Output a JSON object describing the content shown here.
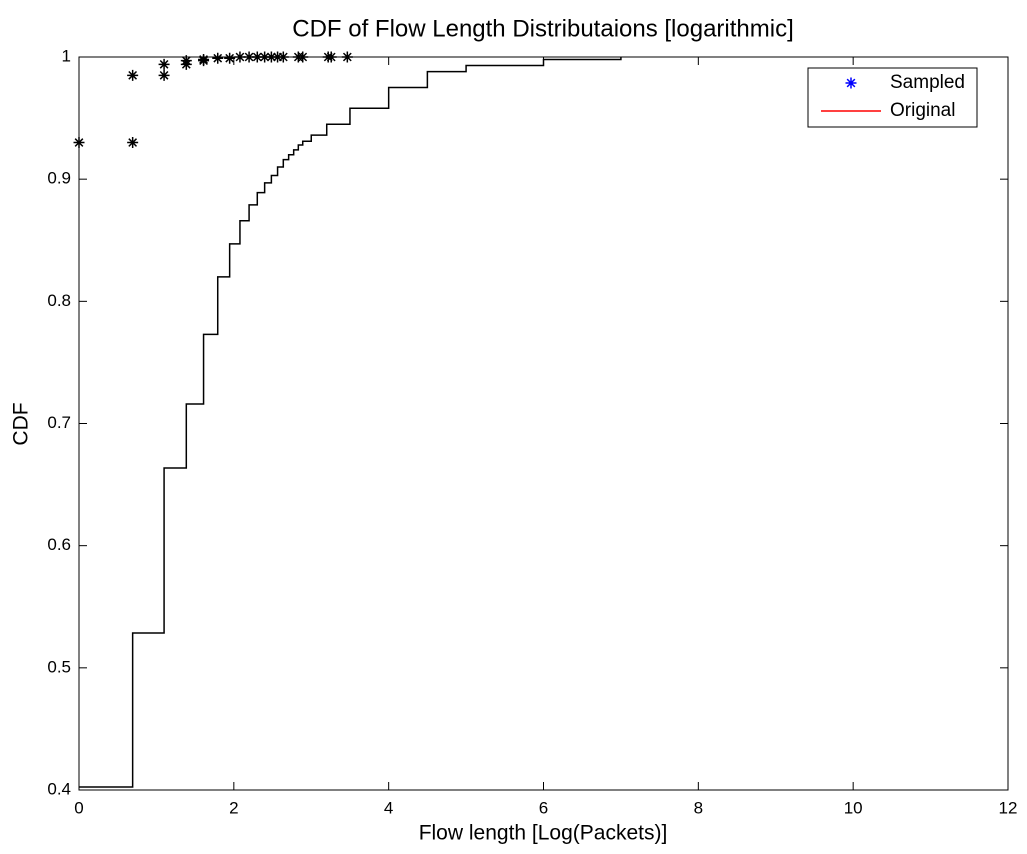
{
  "chart_data": {
    "type": "line",
    "title": "CDF of Flow Length Distributaions [logarithmic]",
    "x_label": "Flow length [Log(Packets)]",
    "y_label": "CDF",
    "xlim": [
      0,
      12
    ],
    "xticks": [
      0,
      2,
      4,
      6,
      8,
      10,
      12
    ],
    "ylim": [
      0.4,
      1
    ],
    "yticks": [
      0.4,
      0.5,
      0.6,
      0.7,
      0.8,
      0.9,
      1
    ],
    "grid": false,
    "legend": "northeast",
    "series": [
      {
        "name": "Sampled",
        "type": "scatter",
        "marker": "*",
        "color": "#000000",
        "legend_color": "#0000ff",
        "x": [
          0,
          0.693,
          0.693,
          1.099,
          1.099,
          1.386,
          1.386,
          1.609,
          1.609,
          1.792,
          1.946,
          2.079,
          2.197,
          2.303,
          2.398,
          2.485,
          2.565,
          2.639,
          2.833,
          2.89,
          3.219,
          3.258,
          3.466
        ],
        "values": [
          0.93,
          0.985,
          0.93,
          0.994,
          0.985,
          0.997,
          0.994,
          0.998,
          0.997,
          0.999,
          0.999,
          1,
          1,
          1,
          1,
          1,
          1,
          1,
          1,
          1,
          1,
          1,
          1
        ]
      },
      {
        "name": "Original",
        "type": "line",
        "step": "post",
        "color": "#000000",
        "legend_color": "#ff0000",
        "x": [
          0,
          0.693,
          1.099,
          1.386,
          1.609,
          1.792,
          1.946,
          2.079,
          2.197,
          2.303,
          2.398,
          2.485,
          2.565,
          2.639,
          2.708,
          2.773,
          2.833,
          2.89,
          3.0,
          3.2,
          3.5,
          4.0,
          4.5,
          5.0,
          6.0,
          7.0
        ],
        "values": [
          0.4025,
          0.5285,
          0.6636,
          0.716,
          0.773,
          0.82,
          0.847,
          0.866,
          0.879,
          0.889,
          0.897,
          0.903,
          0.91,
          0.916,
          0.92,
          0.924,
          0.928,
          0.931,
          0.936,
          0.945,
          0.958,
          0.975,
          0.988,
          0.993,
          0.998,
          1.0
        ]
      }
    ]
  }
}
